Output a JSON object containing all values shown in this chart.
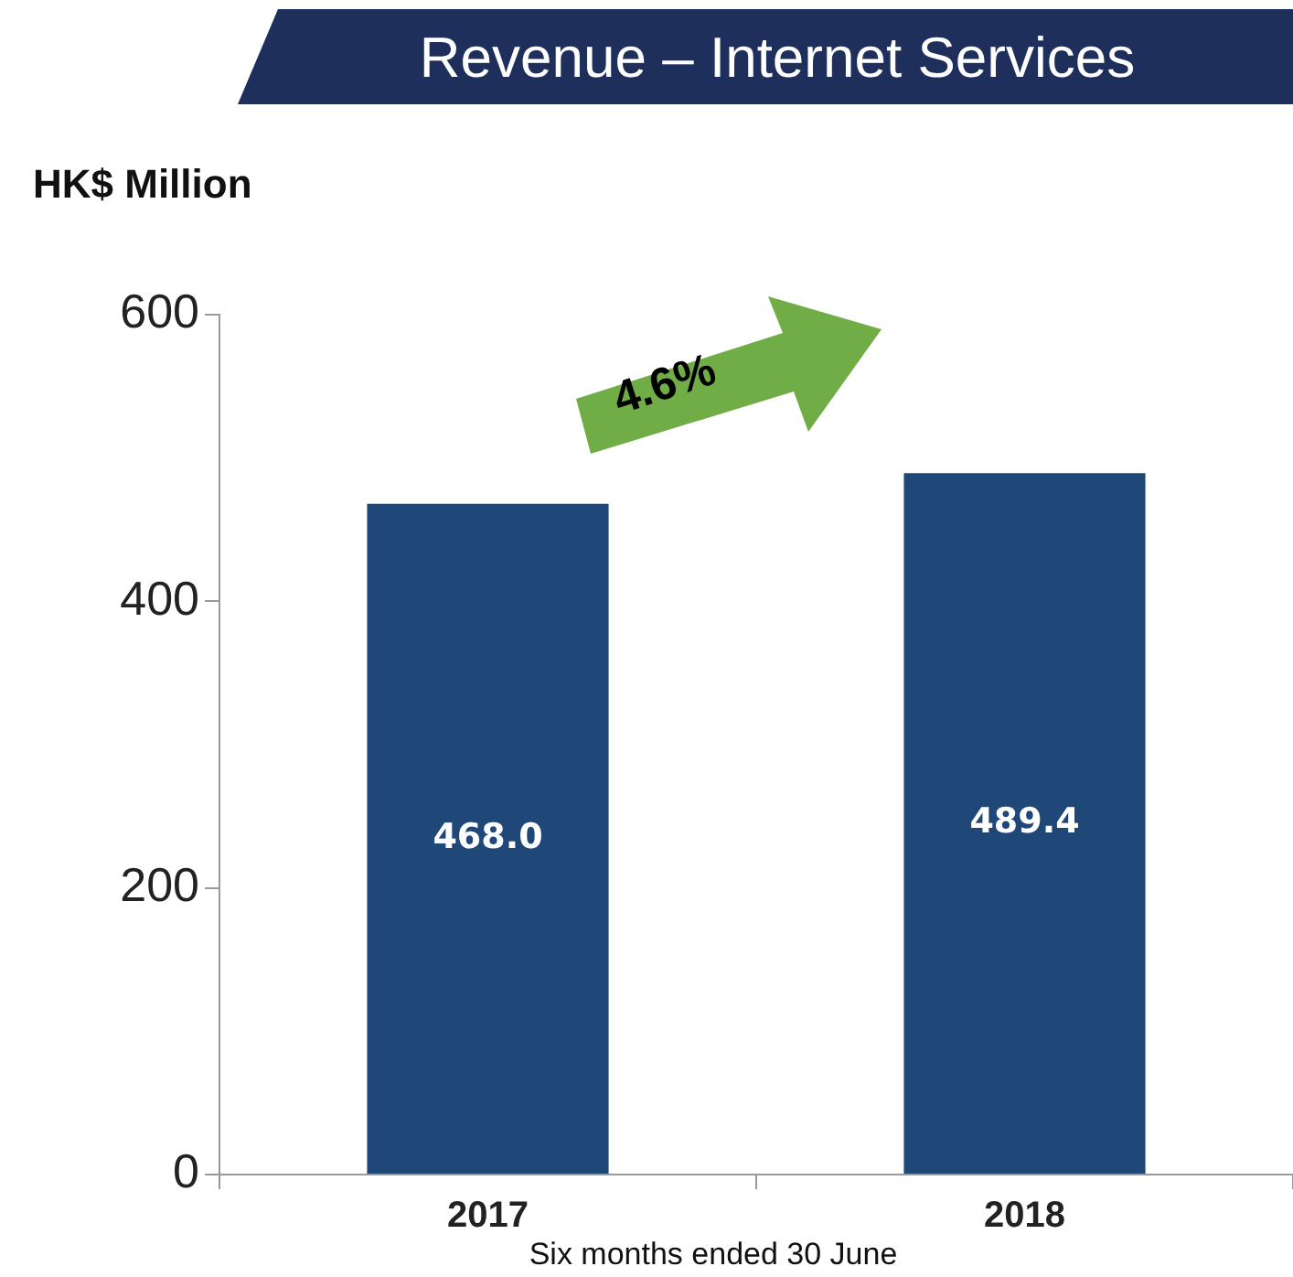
{
  "chart_data": {
    "type": "bar",
    "title": "Revenue – Internet Services",
    "ylabel": "HK$ Million",
    "xlabel": "Six months ended 30 June",
    "categories": [
      "2017",
      "2018"
    ],
    "values": [
      468.0,
      489.4
    ],
    "value_labels": [
      "468.0",
      "489.4"
    ],
    "color": "#1f4778",
    "ylim": [
      0,
      600
    ],
    "yticks": [
      0,
      200,
      400,
      600
    ],
    "grid": false,
    "legend": false,
    "annotations": [
      "4.6%"
    ]
  }
}
